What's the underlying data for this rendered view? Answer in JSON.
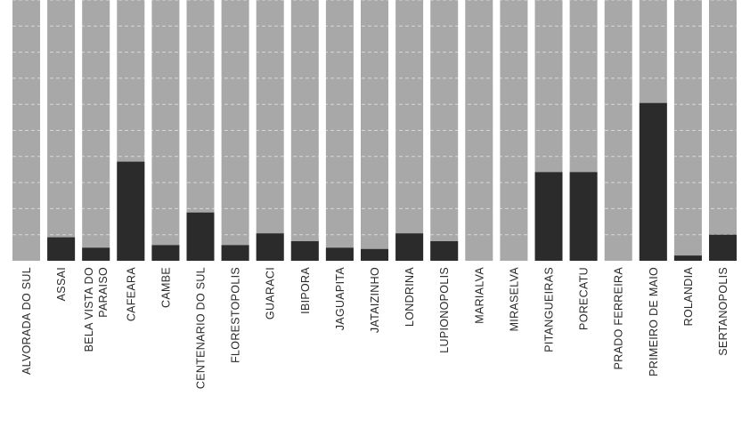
{
  "chart_data": {
    "type": "bar",
    "title": "",
    "xlabel": "",
    "ylabel": "",
    "ylim": [
      0,
      100
    ],
    "grid": true,
    "categories": [
      "ALVORADA DO SUL",
      "ASSAI",
      [
        "BELA VISTA DO",
        "PARAISO"
      ],
      "CAFEARA",
      "CAMBE",
      "CENTENARIO DO SUL",
      "FLORESTOPOLIS",
      "GUARACI",
      "IBIPORA",
      "JAGUAPITA",
      "JATAIZINHO",
      "LONDRINA",
      "LUPIONOPOLIS",
      "MARIALVA",
      "MIRASELVA",
      "PITANGUEIRAS",
      "PORECATU",
      "PRADO FERREIRA",
      "PRIMEIRO DE MAIO",
      "ROLANDIA",
      "SERTANOPOLIS"
    ],
    "series": [
      {
        "values": [
          0,
          9,
          5,
          38,
          6,
          18.5,
          6,
          10.5,
          7.5,
          5,
          4.5,
          10.5,
          7.5,
          0,
          0,
          34,
          34,
          0,
          60.5,
          2,
          10
        ]
      }
    ],
    "colors": {
      "bar": "#2b2b2b",
      "column_background": "#a8a8a8",
      "grid": "#ffffff",
      "label": "#2a2a2a"
    }
  }
}
